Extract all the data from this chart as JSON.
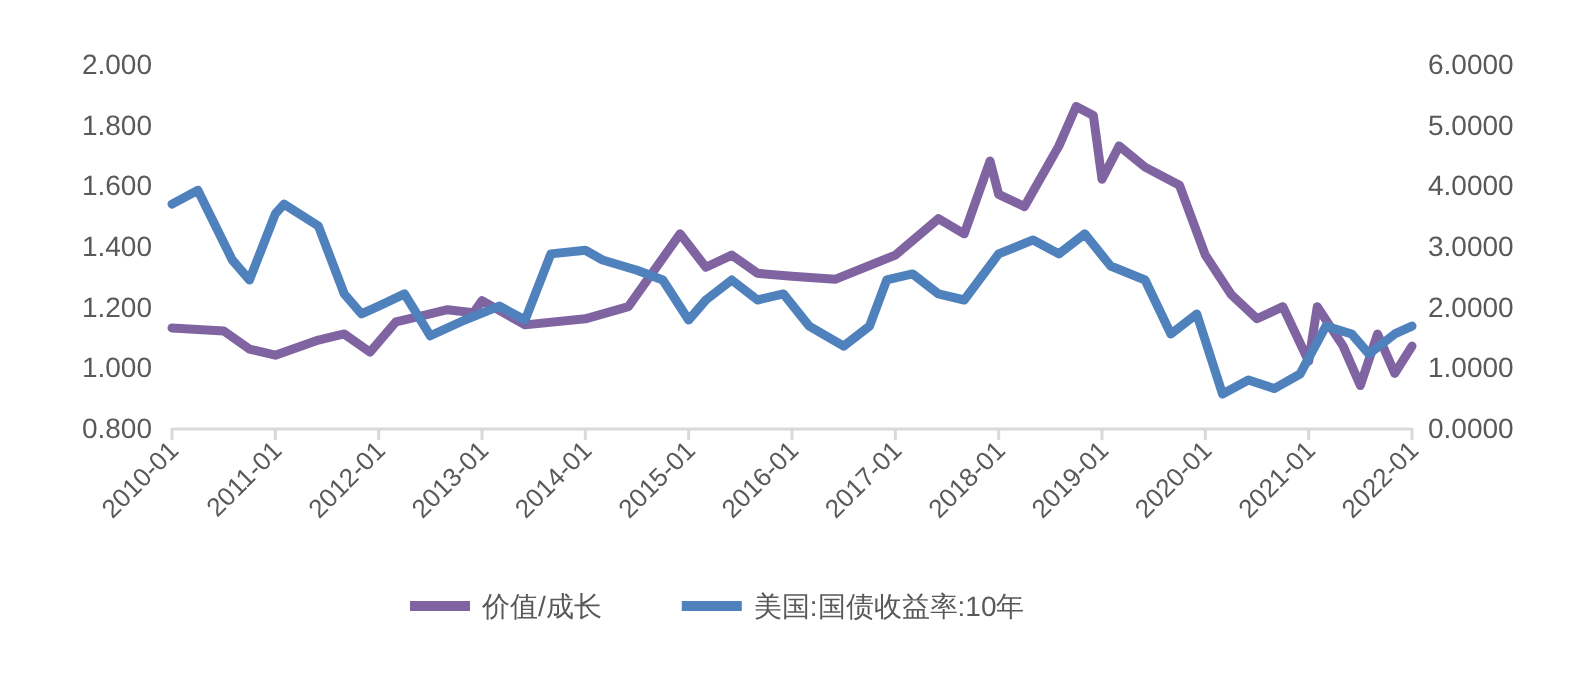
{
  "chart_data": {
    "type": "line",
    "legend": "bottom",
    "marker": "none",
    "line_style": "solid",
    "grid": false,
    "xlim": [
      "2010-01",
      "2022-01"
    ],
    "xticks": [
      "2010-01",
      "2011-01",
      "2012-01",
      "2013-01",
      "2014-01",
      "2015-01",
      "2016-01",
      "2017-01",
      "2018-01",
      "2019-01",
      "2020-01",
      "2021-01",
      "2022-01"
    ],
    "ylim": [
      0.8,
      2.0
    ],
    "yticks": [
      {
        "value": 0.8,
        "label": "0.800"
      },
      {
        "value": 1.0,
        "label": "1.000"
      },
      {
        "value": 1.2,
        "label": "1.200"
      },
      {
        "value": 1.4,
        "label": "1.400"
      },
      {
        "value": 1.6,
        "label": "1.600"
      },
      {
        "value": 1.8,
        "label": "1.800"
      },
      {
        "value": 2.0,
        "label": "2.000"
      }
    ],
    "y2lim": [
      0,
      6
    ],
    "y2ticks": [
      {
        "value": 0,
        "label": "0.0000"
      },
      {
        "value": 1,
        "label": "1.0000"
      },
      {
        "value": 2,
        "label": "2.0000"
      },
      {
        "value": 3,
        "label": "3.0000"
      },
      {
        "value": 4,
        "label": "4.0000"
      },
      {
        "value": 5,
        "label": "5.0000"
      },
      {
        "value": 6,
        "label": "6.0000"
      }
    ],
    "series": [
      {
        "name": "价值/成长",
        "color": "#8064a2",
        "axis": "y",
        "x": [
          "2010-01",
          "2010-07",
          "2010-10",
          "2011-01",
          "2011-06",
          "2011-09",
          "2011-12",
          "2012-03",
          "2012-06",
          "2012-09",
          "2012-12",
          "2013-01",
          "2013-06",
          "2014-01",
          "2014-06",
          "2014-12",
          "2015-03",
          "2015-06",
          "2015-09",
          "2016-01",
          "2016-06",
          "2017-01",
          "2017-06",
          "2017-09",
          "2017-12",
          "2018-01",
          "2018-04",
          "2018-08",
          "2018-10",
          "2018-12",
          "2019-01",
          "2019-03",
          "2019-06",
          "2019-10",
          "2020-01",
          "2020-04",
          "2020-07",
          "2020-10",
          "2021-01",
          "2021-02",
          "2021-05",
          "2021-07",
          "2021-09",
          "2021-11",
          "2022-01"
        ],
        "values": [
          1.13,
          1.12,
          1.06,
          1.04,
          1.09,
          1.11,
          1.05,
          1.15,
          1.17,
          1.19,
          1.18,
          1.22,
          1.14,
          1.16,
          1.2,
          1.44,
          1.33,
          1.37,
          1.31,
          1.3,
          1.29,
          1.37,
          1.49,
          1.44,
          1.68,
          1.57,
          1.53,
          1.73,
          1.86,
          1.83,
          1.62,
          1.73,
          1.66,
          1.6,
          1.37,
          1.24,
          1.16,
          1.2,
          1.02,
          1.2,
          1.07,
          0.94,
          1.11,
          0.98,
          1.07
        ]
      },
      {
        "name": "美国:国债收益率:10年",
        "color": "#4f81bd",
        "axis": "y2",
        "x": [
          "2010-01",
          "2010-04",
          "2010-08",
          "2010-10",
          "2011-01",
          "2011-02",
          "2011-06",
          "2011-09",
          "2011-11",
          "2012-01",
          "2012-04",
          "2012-07",
          "2012-11",
          "2013-03",
          "2013-06",
          "2013-09",
          "2014-01",
          "2014-03",
          "2014-07",
          "2014-10",
          "2015-01",
          "2015-03",
          "2015-06",
          "2015-09",
          "2015-12",
          "2016-03",
          "2016-07",
          "2016-10",
          "2016-12",
          "2017-03",
          "2017-06",
          "2017-09",
          "2018-01",
          "2018-05",
          "2018-08",
          "2018-11",
          "2019-02",
          "2019-06",
          "2019-09",
          "2019-12",
          "2020-03",
          "2020-06",
          "2020-09",
          "2020-12",
          "2021-03",
          "2021-06",
          "2021-08",
          "2021-11",
          "2022-01"
        ],
        "values": [
          3.69,
          3.92,
          2.77,
          2.44,
          3.53,
          3.69,
          3.33,
          2.21,
          1.88,
          2.01,
          2.21,
          1.52,
          1.78,
          2.01,
          1.78,
          2.87,
          2.93,
          2.77,
          2.6,
          2.44,
          1.78,
          2.11,
          2.44,
          2.11,
          2.21,
          1.68,
          1.35,
          1.68,
          2.44,
          2.54,
          2.21,
          2.11,
          2.87,
          3.1,
          2.87,
          3.2,
          2.67,
          2.44,
          1.55,
          1.88,
          0.56,
          0.79,
          0.65,
          0.89,
          1.68,
          1.55,
          1.22,
          1.55,
          1.68
        ]
      }
    ]
  }
}
